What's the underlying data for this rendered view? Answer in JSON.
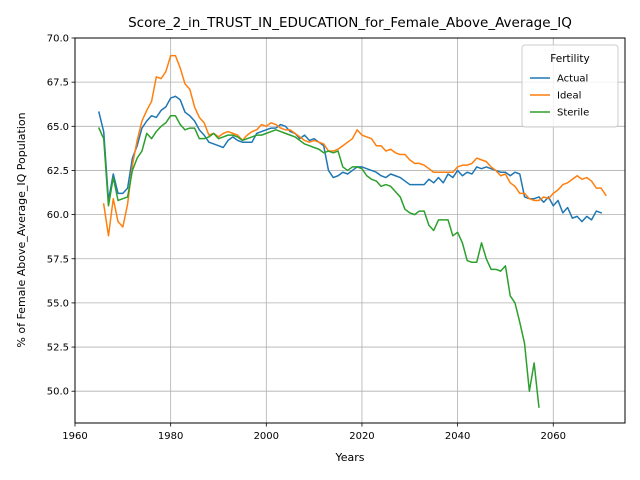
{
  "chart_data": {
    "type": "line",
    "title": "Score_2_in_TRUST_IN_EDUCATION_for_Female_Above_Average_IQ",
    "xlabel": "Years",
    "ylabel": "% of Female Above_Average_IQ Population",
    "xlim": [
      1960,
      2075
    ],
    "ylim": [
      48.2,
      70.0
    ],
    "xticks": [
      1960,
      1980,
      2000,
      2020,
      2040,
      2060
    ],
    "yticks": [
      50.0,
      52.5,
      55.0,
      57.5,
      60.0,
      62.5,
      65.0,
      67.5,
      70.0
    ],
    "grid": true,
    "legend": {
      "title": "Fertility",
      "placement": "top-right"
    },
    "series": [
      {
        "name": "Actual",
        "color": "#1f77b4",
        "points": [
          [
            1965,
            65.8
          ],
          [
            1966,
            64.7
          ],
          [
            1967,
            60.8
          ],
          [
            1968,
            62.3
          ],
          [
            1969,
            61.2
          ],
          [
            1970,
            61.2
          ],
          [
            1971,
            61.5
          ],
          [
            1972,
            63.2
          ],
          [
            1973,
            63.9
          ],
          [
            1974,
            64.9
          ],
          [
            1975,
            65.3
          ],
          [
            1976,
            65.6
          ],
          [
            1977,
            65.5
          ],
          [
            1978,
            65.9
          ],
          [
            1979,
            66.1
          ],
          [
            1980,
            66.6
          ],
          [
            1981,
            66.7
          ],
          [
            1982,
            66.5
          ],
          [
            1983,
            65.8
          ],
          [
            1984,
            65.6
          ],
          [
            1985,
            65.3
          ],
          [
            1986,
            64.8
          ],
          [
            1987,
            64.5
          ],
          [
            1988,
            64.1
          ],
          [
            1989,
            64.0
          ],
          [
            1990,
            63.9
          ],
          [
            1991,
            63.8
          ],
          [
            1992,
            64.2
          ],
          [
            1993,
            64.4
          ],
          [
            1994,
            64.2
          ],
          [
            1995,
            64.1
          ],
          [
            1996,
            64.1
          ],
          [
            1997,
            64.1
          ],
          [
            1998,
            64.6
          ],
          [
            1999,
            64.7
          ],
          [
            2000,
            64.8
          ],
          [
            2001,
            64.9
          ],
          [
            2002,
            64.9
          ],
          [
            2003,
            65.1
          ],
          [
            2004,
            65.0
          ],
          [
            2005,
            64.7
          ],
          [
            2006,
            64.6
          ],
          [
            2007,
            64.3
          ],
          [
            2008,
            64.5
          ],
          [
            2009,
            64.2
          ],
          [
            2010,
            64.3
          ],
          [
            2011,
            64.1
          ],
          [
            2012,
            63.9
          ],
          [
            2013,
            62.5
          ],
          [
            2014,
            62.1
          ],
          [
            2015,
            62.2
          ],
          [
            2016,
            62.4
          ],
          [
            2017,
            62.3
          ],
          [
            2018,
            62.5
          ],
          [
            2019,
            62.7
          ],
          [
            2020,
            62.7
          ],
          [
            2021,
            62.6
          ],
          [
            2022,
            62.5
          ],
          [
            2023,
            62.4
          ],
          [
            2024,
            62.2
          ],
          [
            2025,
            62.1
          ],
          [
            2026,
            62.3
          ],
          [
            2027,
            62.2
          ],
          [
            2028,
            62.1
          ],
          [
            2029,
            61.9
          ],
          [
            2030,
            61.7
          ],
          [
            2031,
            61.7
          ],
          [
            2032,
            61.7
          ],
          [
            2033,
            61.7
          ],
          [
            2034,
            62.0
          ],
          [
            2035,
            61.8
          ],
          [
            2036,
            62.1
          ],
          [
            2037,
            61.8
          ],
          [
            2038,
            62.3
          ],
          [
            2039,
            62.1
          ],
          [
            2040,
            62.5
          ],
          [
            2041,
            62.2
          ],
          [
            2042,
            62.4
          ],
          [
            2043,
            62.3
          ],
          [
            2044,
            62.7
          ],
          [
            2045,
            62.6
          ],
          [
            2046,
            62.7
          ],
          [
            2047,
            62.6
          ],
          [
            2048,
            62.5
          ],
          [
            2049,
            62.4
          ],
          [
            2050,
            62.4
          ],
          [
            2051,
            62.2
          ],
          [
            2052,
            62.4
          ],
          [
            2053,
            62.3
          ],
          [
            2054,
            61.0
          ],
          [
            2055,
            60.9
          ],
          [
            2056,
            60.9
          ],
          [
            2057,
            61.0
          ],
          [
            2058,
            60.7
          ],
          [
            2059,
            61.0
          ],
          [
            2060,
            60.5
          ],
          [
            2061,
            60.8
          ],
          [
            2062,
            60.1
          ],
          [
            2063,
            60.4
          ],
          [
            2064,
            59.8
          ],
          [
            2065,
            59.9
          ],
          [
            2066,
            59.6
          ],
          [
            2067,
            59.9
          ],
          [
            2068,
            59.7
          ],
          [
            2069,
            60.2
          ],
          [
            2070,
            60.1
          ]
        ]
      },
      {
        "name": "Ideal",
        "color": "#ff7f0e",
        "points": [
          [
            1966,
            60.6
          ],
          [
            1967,
            58.8
          ],
          [
            1968,
            60.9
          ],
          [
            1969,
            59.6
          ],
          [
            1970,
            59.3
          ],
          [
            1971,
            60.6
          ],
          [
            1972,
            62.8
          ],
          [
            1973,
            64.2
          ],
          [
            1974,
            65.3
          ],
          [
            1975,
            65.9
          ],
          [
            1976,
            66.4
          ],
          [
            1977,
            67.8
          ],
          [
            1978,
            67.7
          ],
          [
            1979,
            68.1
          ],
          [
            1980,
            69.0
          ],
          [
            1981,
            69.0
          ],
          [
            1982,
            68.3
          ],
          [
            1983,
            67.4
          ],
          [
            1984,
            67.1
          ],
          [
            1985,
            66.1
          ],
          [
            1986,
            65.5
          ],
          [
            1987,
            65.2
          ],
          [
            1988,
            64.5
          ],
          [
            1989,
            64.6
          ],
          [
            1990,
            64.4
          ],
          [
            1991,
            64.6
          ],
          [
            1992,
            64.7
          ],
          [
            1993,
            64.6
          ],
          [
            1994,
            64.5
          ],
          [
            1995,
            64.2
          ],
          [
            1996,
            64.5
          ],
          [
            1997,
            64.7
          ],
          [
            1998,
            64.8
          ],
          [
            1999,
            65.1
          ],
          [
            2000,
            65.0
          ],
          [
            2001,
            65.2
          ],
          [
            2002,
            65.1
          ],
          [
            2003,
            64.9
          ],
          [
            2004,
            64.8
          ],
          [
            2005,
            64.8
          ],
          [
            2006,
            64.6
          ],
          [
            2007,
            64.4
          ],
          [
            2008,
            64.2
          ],
          [
            2009,
            64.1
          ],
          [
            2010,
            64.2
          ],
          [
            2011,
            64.1
          ],
          [
            2012,
            64.0
          ],
          [
            2013,
            63.6
          ],
          [
            2014,
            63.6
          ],
          [
            2015,
            63.7
          ],
          [
            2016,
            63.9
          ],
          [
            2017,
            64.1
          ],
          [
            2018,
            64.3
          ],
          [
            2019,
            64.8
          ],
          [
            2020,
            64.5
          ],
          [
            2021,
            64.4
          ],
          [
            2022,
            64.3
          ],
          [
            2023,
            63.9
          ],
          [
            2024,
            63.9
          ],
          [
            2025,
            63.6
          ],
          [
            2026,
            63.7
          ],
          [
            2027,
            63.5
          ],
          [
            2028,
            63.4
          ],
          [
            2029,
            63.4
          ],
          [
            2030,
            63.1
          ],
          [
            2031,
            62.9
          ],
          [
            2032,
            62.9
          ],
          [
            2033,
            62.8
          ],
          [
            2034,
            62.6
          ],
          [
            2035,
            62.4
          ],
          [
            2036,
            62.4
          ],
          [
            2037,
            62.4
          ],
          [
            2038,
            62.4
          ],
          [
            2039,
            62.4
          ],
          [
            2040,
            62.7
          ],
          [
            2041,
            62.8
          ],
          [
            2042,
            62.8
          ],
          [
            2043,
            62.9
          ],
          [
            2044,
            63.2
          ],
          [
            2045,
            63.1
          ],
          [
            2046,
            63.0
          ],
          [
            2047,
            62.7
          ],
          [
            2048,
            62.5
          ],
          [
            2049,
            62.2
          ],
          [
            2050,
            62.3
          ],
          [
            2051,
            61.8
          ],
          [
            2052,
            61.6
          ],
          [
            2053,
            61.2
          ],
          [
            2054,
            61.2
          ],
          [
            2055,
            60.9
          ],
          [
            2056,
            60.8
          ],
          [
            2057,
            60.8
          ],
          [
            2058,
            61.0
          ],
          [
            2059,
            60.9
          ],
          [
            2060,
            61.2
          ],
          [
            2061,
            61.4
          ],
          [
            2062,
            61.7
          ],
          [
            2063,
            61.8
          ],
          [
            2064,
            62.0
          ],
          [
            2065,
            62.2
          ],
          [
            2066,
            62.0
          ],
          [
            2067,
            62.1
          ],
          [
            2068,
            61.9
          ],
          [
            2069,
            61.5
          ],
          [
            2070,
            61.5
          ],
          [
            2071,
            61.1
          ]
        ]
      },
      {
        "name": "Sterile",
        "color": "#2ca02c",
        "points": [
          [
            1965,
            64.9
          ],
          [
            1966,
            64.3
          ],
          [
            1967,
            60.5
          ],
          [
            1968,
            62.1
          ],
          [
            1969,
            60.8
          ],
          [
            1970,
            60.9
          ],
          [
            1971,
            61.0
          ],
          [
            1972,
            62.5
          ],
          [
            1973,
            63.2
          ],
          [
            1974,
            63.6
          ],
          [
            1975,
            64.6
          ],
          [
            1976,
            64.3
          ],
          [
            1977,
            64.7
          ],
          [
            1978,
            65.0
          ],
          [
            1979,
            65.2
          ],
          [
            1980,
            65.6
          ],
          [
            1981,
            65.6
          ],
          [
            1982,
            65.1
          ],
          [
            1983,
            64.8
          ],
          [
            1984,
            64.9
          ],
          [
            1985,
            64.9
          ],
          [
            1986,
            64.3
          ],
          [
            1987,
            64.3
          ],
          [
            1988,
            64.4
          ],
          [
            1989,
            64.6
          ],
          [
            1990,
            64.3
          ],
          [
            1991,
            64.4
          ],
          [
            1992,
            64.5
          ],
          [
            1993,
            64.5
          ],
          [
            1994,
            64.4
          ],
          [
            1995,
            64.2
          ],
          [
            1996,
            64.3
          ],
          [
            1997,
            64.4
          ],
          [
            1998,
            64.5
          ],
          [
            1999,
            64.5
          ],
          [
            2000,
            64.6
          ],
          [
            2001,
            64.7
          ],
          [
            2002,
            64.8
          ],
          [
            2003,
            64.7
          ],
          [
            2004,
            64.6
          ],
          [
            2005,
            64.5
          ],
          [
            2006,
            64.4
          ],
          [
            2007,
            64.2
          ],
          [
            2008,
            64.0
          ],
          [
            2009,
            63.9
          ],
          [
            2010,
            63.8
          ],
          [
            2011,
            63.7
          ],
          [
            2012,
            63.5
          ],
          [
            2013,
            63.6
          ],
          [
            2014,
            63.5
          ],
          [
            2015,
            63.6
          ],
          [
            2016,
            62.7
          ],
          [
            2017,
            62.5
          ],
          [
            2018,
            62.7
          ],
          [
            2019,
            62.7
          ],
          [
            2020,
            62.6
          ],
          [
            2021,
            62.2
          ],
          [
            2022,
            62.0
          ],
          [
            2023,
            61.9
          ],
          [
            2024,
            61.6
          ],
          [
            2025,
            61.7
          ],
          [
            2026,
            61.6
          ],
          [
            2027,
            61.3
          ],
          [
            2028,
            61.0
          ],
          [
            2029,
            60.3
          ],
          [
            2030,
            60.1
          ],
          [
            2031,
            60.0
          ],
          [
            2032,
            60.2
          ],
          [
            2033,
            60.2
          ],
          [
            2034,
            59.4
          ],
          [
            2035,
            59.1
          ],
          [
            2036,
            59.7
          ],
          [
            2037,
            59.7
          ],
          [
            2038,
            59.7
          ],
          [
            2039,
            58.8
          ],
          [
            2040,
            59.0
          ],
          [
            2041,
            58.4
          ],
          [
            2042,
            57.4
          ],
          [
            2043,
            57.3
          ],
          [
            2044,
            57.3
          ],
          [
            2045,
            58.4
          ],
          [
            2046,
            57.5
          ],
          [
            2047,
            56.9
          ],
          [
            2048,
            56.9
          ],
          [
            2049,
            56.8
          ],
          [
            2050,
            57.1
          ],
          [
            2051,
            55.4
          ],
          [
            2052,
            55.0
          ],
          [
            2053,
            53.9
          ],
          [
            2054,
            52.7
          ],
          [
            2055,
            50.0
          ],
          [
            2056,
            51.6
          ],
          [
            2057,
            49.1
          ]
        ]
      }
    ]
  }
}
